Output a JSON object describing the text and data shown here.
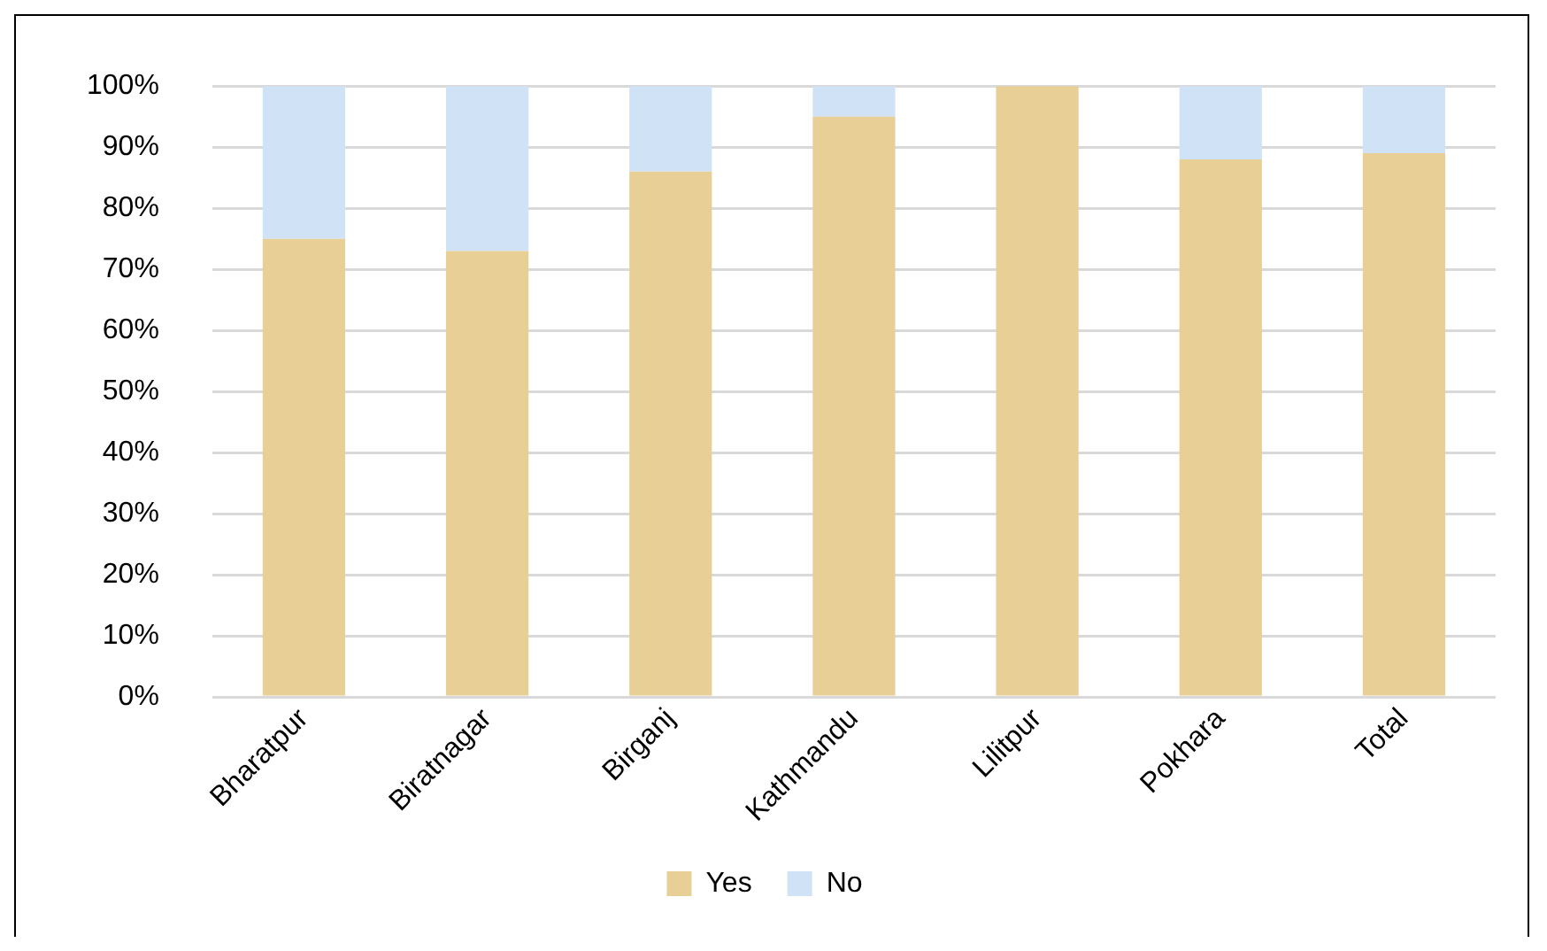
{
  "chart_data": {
    "type": "bar",
    "stacked": true,
    "categories": [
      "Bharatpur",
      "Biratnagar",
      "Birganj",
      "Kathmandu",
      "Lilitpur",
      "Pokhara",
      "Total"
    ],
    "series": [
      {
        "name": "Yes",
        "color": "#e8cf96",
        "values": [
          75,
          73,
          86,
          95,
          100,
          88,
          89
        ]
      },
      {
        "name": "No",
        "color": "#cfe2f6",
        "values": [
          25,
          27,
          14,
          5,
          0,
          12,
          11
        ]
      }
    ],
    "ylim": [
      0,
      100
    ],
    "yticks": [
      {
        "value": 0,
        "label": "0%"
      },
      {
        "value": 10,
        "label": "10%"
      },
      {
        "value": 20,
        "label": "20%"
      },
      {
        "value": 30,
        "label": "30%"
      },
      {
        "value": 40,
        "label": "40%"
      },
      {
        "value": 50,
        "label": "50%"
      },
      {
        "value": 60,
        "label": "60%"
      },
      {
        "value": 70,
        "label": "70%"
      },
      {
        "value": 80,
        "label": "80%"
      },
      {
        "value": 90,
        "label": "90%"
      },
      {
        "value": 100,
        "label": "100%"
      }
    ],
    "grid": "y",
    "legend": "bottom"
  }
}
